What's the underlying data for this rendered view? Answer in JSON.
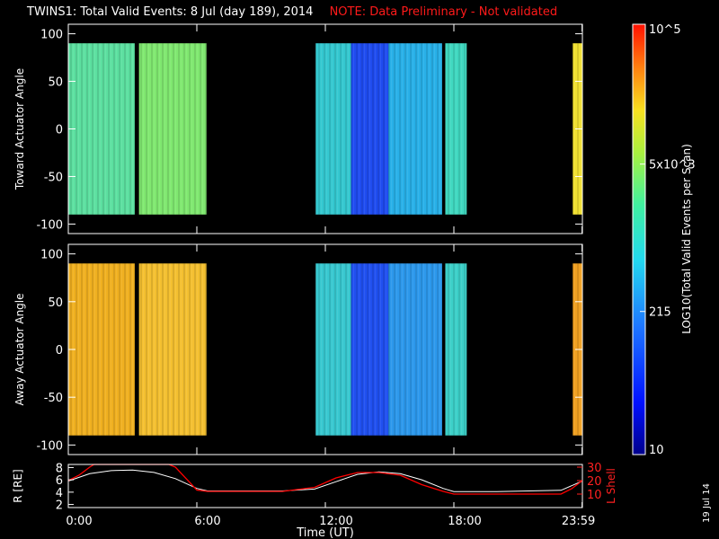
{
  "title": "TWINS1: Total Valid Events:  8 Jul (day 189), 2014",
  "note": "NOTE: Data Preliminary - Not validated",
  "footer_date": "19 Jul 14",
  "colors": {
    "background": "#000000",
    "axes": "#ffffff",
    "note": "#ff1a1a",
    "lshell_line": "#ff0000",
    "r_line": "#ffffff"
  },
  "chart_data": [
    {
      "type": "heatmap",
      "panel": "top",
      "ylabel": "Toward Actuator Angle",
      "ylim": [
        -110,
        110
      ],
      "yticks": [
        100,
        50,
        0,
        -50,
        -100
      ],
      "xlim": [
        0,
        24
      ],
      "scan_angle_range": [
        -90,
        90
      ],
      "data_blocks": [
        {
          "start": 0.0,
          "end": 3.1,
          "value_log10": 3.6,
          "color": "#5ce0a0"
        },
        {
          "start": 3.3,
          "end": 6.45,
          "value_log10": 3.8,
          "color": "#80e870"
        },
        {
          "start": 11.55,
          "end": 13.2,
          "value_log10": 3.3,
          "color": "#34c8d0"
        },
        {
          "start": 13.2,
          "end": 14.95,
          "value_log10": 2.2,
          "color": "#1f4cf0"
        },
        {
          "start": 14.95,
          "end": 17.45,
          "value_log10": 3.0,
          "color": "#28b0e8"
        },
        {
          "start": 17.6,
          "end": 18.6,
          "value_log10": 3.4,
          "color": "#40d8c0"
        },
        {
          "start": 23.55,
          "end": 24.0,
          "value_log10": 4.4,
          "color": "#f0e030"
        }
      ]
    },
    {
      "type": "heatmap",
      "panel": "middle",
      "ylabel": "Away Actuator Angle",
      "ylim": [
        -110,
        110
      ],
      "yticks": [
        100,
        50,
        0,
        -50,
        -100
      ],
      "xlim": [
        0,
        24
      ],
      "scan_angle_range": [
        -90,
        90
      ],
      "data_blocks": [
        {
          "start": 0.0,
          "end": 3.1,
          "value_log10": 4.35,
          "color": "#f0b020"
        },
        {
          "start": 3.3,
          "end": 6.45,
          "value_log10": 4.3,
          "color": "#f4c030"
        },
        {
          "start": 11.55,
          "end": 13.2,
          "value_log10": 3.3,
          "color": "#38c8d0"
        },
        {
          "start": 13.2,
          "end": 14.95,
          "value_log10": 2.3,
          "color": "#2050f0"
        },
        {
          "start": 14.95,
          "end": 17.45,
          "value_log10": 2.9,
          "color": "#2c98ec"
        },
        {
          "start": 17.6,
          "end": 18.6,
          "value_log10": 3.3,
          "color": "#3cd0c8"
        },
        {
          "start": 23.55,
          "end": 24.0,
          "value_log10": 4.5,
          "color": "#f0a020"
        }
      ]
    },
    {
      "type": "line",
      "panel": "bottom",
      "ylabel": "R [RE]",
      "ylabel2": "L Shell",
      "xlabel": "Time (UT)",
      "xlim": [
        0,
        24
      ],
      "xticks": [
        0,
        6,
        12,
        18,
        23.983
      ],
      "xtick_labels": [
        "0:00",
        "6:00",
        "12:00",
        "18:00",
        "23:59"
      ],
      "ylim": [
        1.5,
        8.5
      ],
      "yticks": [
        2,
        4,
        6,
        8
      ],
      "ylim2": [
        0,
        32
      ],
      "yticks2": [
        10,
        20,
        30
      ],
      "series": [
        {
          "name": "R [RE]",
          "axis": "left",
          "x": [
            0,
            1,
            2,
            3,
            4,
            5,
            6,
            6.5,
            8,
            10,
            11.5,
            12.5,
            13.5,
            14.5,
            15.5,
            16.5,
            17.5,
            18,
            20,
            23,
            24
          ],
          "y": [
            5.8,
            7.0,
            7.5,
            7.6,
            7.2,
            6.2,
            4.6,
            4.2,
            4.2,
            4.2,
            4.5,
            5.7,
            6.9,
            7.3,
            7.0,
            6.0,
            4.6,
            4.1,
            4.1,
            4.3,
            5.8
          ]
        },
        {
          "name": "L Shell",
          "axis": "right",
          "x": [
            0,
            0.5,
            1,
            1.2,
            4.7,
            5,
            6,
            6.5,
            8,
            10,
            11.5,
            12.5,
            13.5,
            14.5,
            15.5,
            16.5,
            17.5,
            18,
            20,
            23,
            23.5,
            24
          ],
          "y": [
            20,
            24,
            30,
            32,
            32,
            30,
            13,
            12,
            12,
            12,
            15,
            22,
            26,
            26,
            24,
            17,
            12,
            10,
            10,
            10,
            14,
            20
          ]
        }
      ]
    }
  ],
  "colorbar": {
    "label": "LOG10(Total Valid Events per Scan)",
    "ticks": [
      {
        "label": "10",
        "log10": 1.0
      },
      {
        "label": "215",
        "log10": 2.33
      },
      {
        "label": "5x10^3",
        "log10": 3.7
      },
      {
        "label": "10^5",
        "log10": 5.0
      }
    ],
    "range_log10": [
      1.0,
      5.0
    ]
  }
}
